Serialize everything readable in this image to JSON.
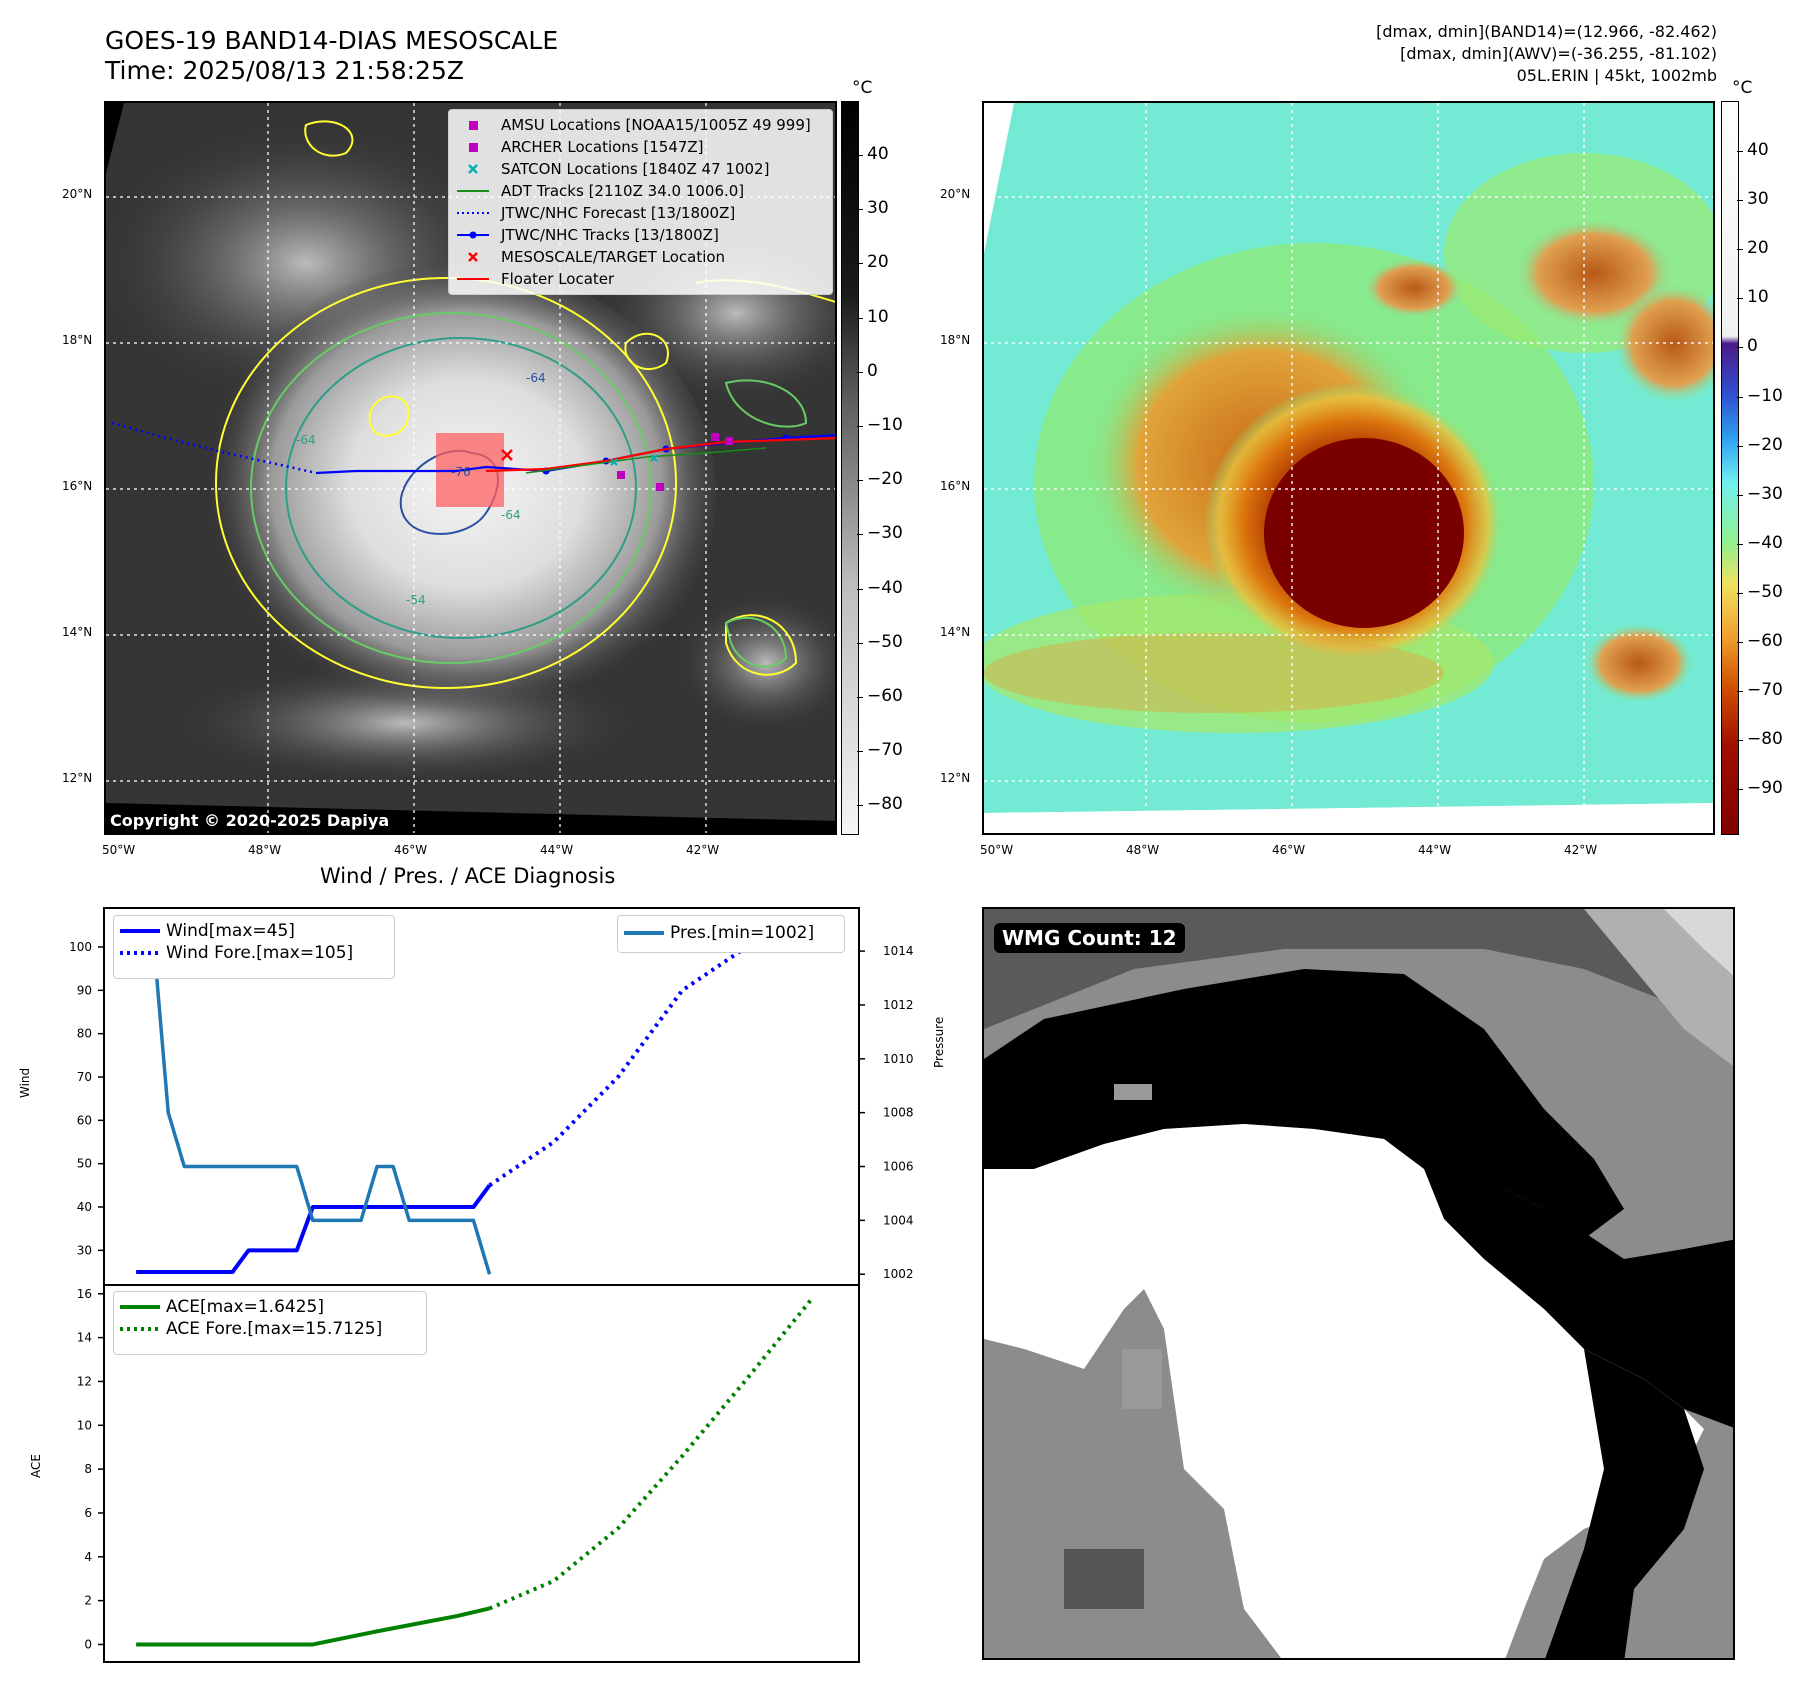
{
  "header": {
    "title_line1": "GOES-19 BAND14-DIAS MESOSCALE",
    "title_line2": "Time: 2025/08/13 21:58:25Z",
    "right_line1": "[dmax, dmin](BAND14)=(12.966, -82.462)",
    "right_line2": "[dmax, dmin](AWV)=(-36.255, -81.102)",
    "right_line3": "05L.ERIN | 45kt, 1002mb"
  },
  "map_axes": {
    "lat_labels": [
      "20°N",
      "18°N",
      "16°N",
      "14°N",
      "12°N"
    ],
    "lon_labels": [
      "50°W",
      "48°W",
      "46°W",
      "44°W",
      "42°W"
    ]
  },
  "ir_panel": {
    "copyright": "Copyright © 2020-2025 Dapiya",
    "legend": [
      {
        "label": "AMSU Locations [NOAA15/1005Z 49 999]",
        "marker": "square",
        "color": "#c000c0"
      },
      {
        "label": "ARCHER Locations [1547Z]",
        "marker": "square",
        "color": "#c000c0"
      },
      {
        "label": "SATCON Locations [1840Z 47 1002]",
        "marker": "x",
        "color": "#00b0b0"
      },
      {
        "label": "ADT Tracks [2110Z 34.0 1006.0]",
        "marker": "line",
        "color": "#1a8a1a"
      },
      {
        "label": "JTWC/NHC Forecast [13/1800Z]",
        "marker": "dotted",
        "color": "#0000ff"
      },
      {
        "label": "JTWC/NHC Tracks [13/1800Z]",
        "marker": "line-dot",
        "color": "#0000ff"
      },
      {
        "label": "MESOSCALE/TARGET Location",
        "marker": "x",
        "color": "#ff0000"
      },
      {
        "label": "Floater Locater",
        "marker": "line",
        "color": "#ff0000"
      }
    ],
    "contour_labels": [
      "-64",
      "-64",
      "-54",
      "-64",
      "-76"
    ],
    "colorbar": {
      "unit": "°C",
      "ticks": [
        "40",
        "30",
        "20",
        "10",
        "0",
        "−10",
        "−20",
        "−30",
        "−40",
        "−50",
        "−60",
        "−70",
        "−80"
      ]
    }
  },
  "awv_panel": {
    "colorbar": {
      "unit": "°C",
      "ticks": [
        "40",
        "30",
        "20",
        "10",
        "0",
        "−10",
        "−20",
        "−30",
        "−40",
        "−50",
        "−60",
        "−70",
        "−80",
        "−90"
      ]
    }
  },
  "wmg_panel": {
    "badge": "WMG Count: 12"
  },
  "diagnosis": {
    "title": "Wind / Pres. / ACE Diagnosis",
    "wind_ylabel": "Wind",
    "pres_ylabel": "Pressure",
    "ace_ylabel": "ACE",
    "legend_wind": "Wind[max=45]",
    "legend_wind_fore": "Wind Fore.[max=105]",
    "legend_pres": "Pres.[min=1002]",
    "legend_ace": "ACE[max=1.6425]",
    "legend_ace_fore": "ACE Fore.[max=15.7125]"
  },
  "chart_data": [
    {
      "type": "line",
      "title": "Wind / Pres. / ACE Diagnosis",
      "ylabel": "Wind",
      "ylim": [
        22,
        109
      ],
      "yticks": [
        30,
        40,
        50,
        60,
        70,
        80,
        90,
        100
      ],
      "xlim": [
        -2,
        45
      ],
      "series": [
        {
          "name": "Wind[max=45]",
          "style": "solid",
          "color": "#0000ff",
          "x": [
            0,
            1,
            2,
            3,
            4,
            5,
            6,
            7,
            8,
            9,
            10,
            11,
            12,
            13,
            14,
            15,
            16,
            17,
            18,
            19,
            20,
            21,
            22
          ],
          "values": [
            25,
            25,
            25,
            25,
            25,
            25,
            25,
            30,
            30,
            30,
            30,
            40,
            40,
            40,
            40,
            40,
            40,
            40,
            40,
            40,
            40,
            40,
            45
          ]
        },
        {
          "name": "Wind Fore.[max=105]",
          "style": "dotted",
          "color": "#0000ff",
          "x": [
            22,
            26,
            30,
            34,
            38,
            40
          ],
          "values": [
            45,
            55,
            70,
            90,
            100,
            105
          ]
        }
      ]
    },
    {
      "type": "line",
      "ylabel": "Pressure",
      "ylim": [
        1001.6,
        1015.6
      ],
      "yticks": [
        1002,
        1004,
        1006,
        1008,
        1010,
        1012,
        1014
      ],
      "series": [
        {
          "name": "Pres.[min=1002]",
          "style": "solid",
          "color": "#1f77b4",
          "x": [
            0,
            1,
            2,
            3,
            4,
            5,
            6,
            7,
            8,
            9,
            10,
            11,
            12,
            13,
            14,
            15,
            16,
            17,
            18,
            19,
            20,
            21,
            22
          ],
          "values": [
            1015,
            1015,
            1008,
            1006,
            1006,
            1006,
            1006,
            1006,
            1006,
            1006,
            1006,
            1004,
            1004,
            1004,
            1004,
            1006,
            1006,
            1004,
            1004,
            1004,
            1004,
            1004,
            1002
          ]
        }
      ]
    },
    {
      "type": "line",
      "ylabel": "ACE",
      "ylim": [
        -0.8,
        16.4
      ],
      "yticks": [
        0,
        2,
        4,
        6,
        8,
        10,
        12,
        14,
        16
      ],
      "xlim": [
        -2,
        45
      ],
      "series": [
        {
          "name": "ACE[max=1.6425]",
          "style": "solid",
          "color": "#008000",
          "x": [
            0,
            11,
            15,
            20,
            22
          ],
          "values": [
            0,
            0,
            0.6,
            1.3,
            1.6425
          ]
        },
        {
          "name": "ACE Fore.[max=15.7125]",
          "style": "dotted",
          "color": "#008000",
          "x": [
            22,
            26,
            30,
            34,
            38,
            42
          ],
          "values": [
            1.6425,
            2.9,
            5.3,
            8.6,
            12.1,
            15.7125
          ]
        }
      ]
    }
  ],
  "colors": {
    "accent_wind": "#0000ff",
    "accent_pres": "#1f77b4",
    "accent_ace": "#008000",
    "contour_yellow": "#ffff33"
  }
}
